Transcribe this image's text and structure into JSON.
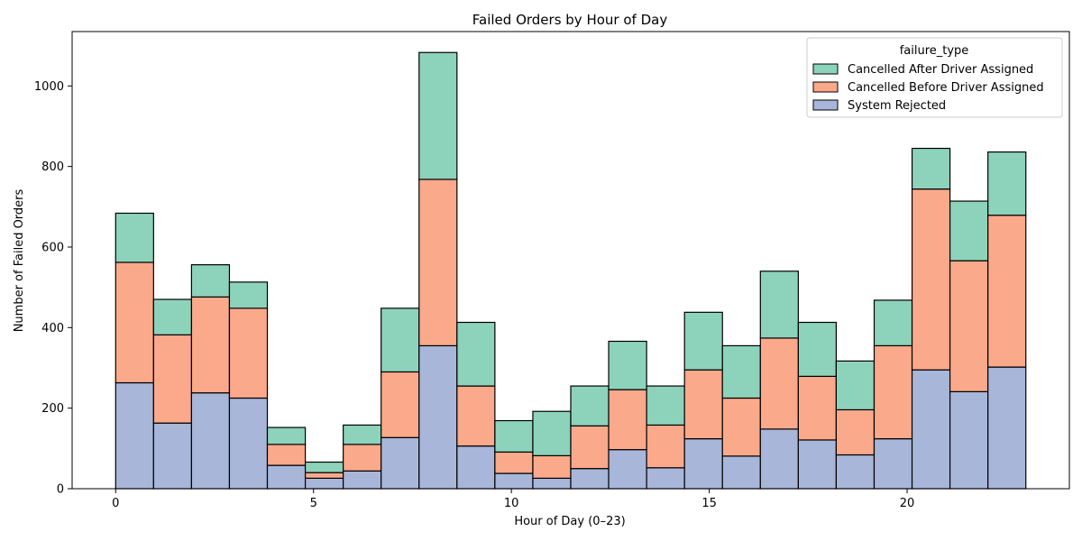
{
  "chart_data": {
    "type": "bar",
    "stacked": true,
    "title": "Failed Orders by Hour of Day",
    "xlabel": "Hour of Day (0–23)",
    "ylabel": "Number of Failed Orders",
    "xlim": [
      -1.1,
      24.1
    ],
    "ylim": [
      0,
      1135
    ],
    "xticks": [
      0,
      5,
      10,
      15,
      20
    ],
    "yticks": [
      0,
      200,
      400,
      600,
      800,
      1000
    ],
    "grid": false,
    "legend": {
      "title": "failure_type",
      "placement": "top-right"
    },
    "bin_edges": [
      0,
      0.958,
      1.917,
      2.875,
      3.833,
      4.792,
      5.75,
      6.708,
      7.667,
      8.625,
      9.583,
      10.542,
      11.5,
      12.458,
      13.417,
      14.375,
      15.333,
      16.292,
      17.25,
      18.208,
      19.167,
      20.125,
      21.083,
      22.042,
      23
    ],
    "series": [
      {
        "name": "System Rejected",
        "color": "#a8b6d9",
        "values": [
          263,
          163,
          238,
          225,
          58,
          26,
          44,
          127,
          355,
          106,
          38,
          26,
          50,
          97,
          52,
          124,
          81,
          148,
          121,
          84,
          124,
          295,
          241,
          302
        ]
      },
      {
        "name": "Cancelled Before Driver Assigned",
        "color": "#fba98b",
        "values": [
          299,
          219,
          238,
          223,
          52,
          14,
          66,
          163,
          413,
          149,
          53,
          56,
          106,
          149,
          106,
          171,
          144,
          226,
          158,
          112,
          231,
          449,
          325,
          377
        ]
      },
      {
        "name": "Cancelled After Driver Assigned",
        "color": "#8dd3bc",
        "values": [
          122,
          88,
          80,
          65,
          42,
          26,
          48,
          158,
          315,
          158,
          78,
          110,
          99,
          120,
          97,
          143,
          130,
          166,
          134,
          121,
          113,
          101,
          148,
          157
        ]
      }
    ],
    "legend_order": [
      "Cancelled After Driver Assigned",
      "Cancelled Before Driver Assigned",
      "System Rejected"
    ]
  }
}
